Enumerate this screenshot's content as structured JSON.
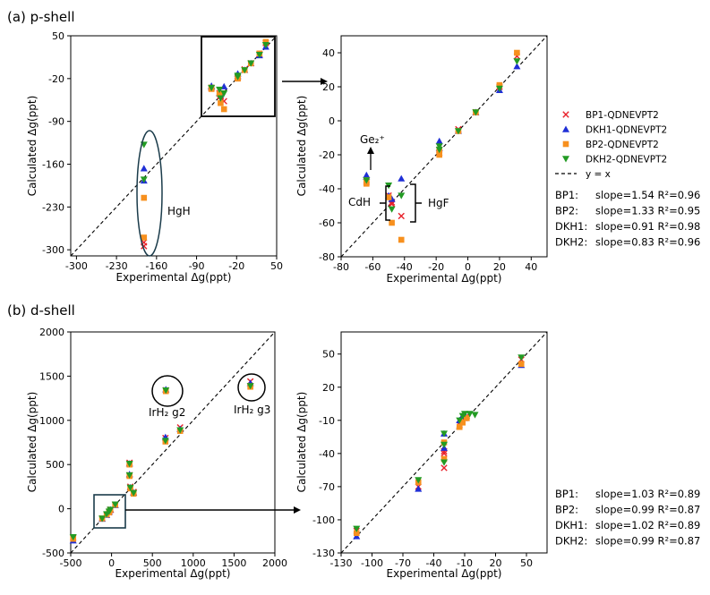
{
  "figure": {
    "panel_a_title": "(a) p-shell",
    "panel_b_title": "(b) d-shell"
  },
  "series_styles": [
    {
      "name": "BP1-QDNEVPT2",
      "color": "#e8202a",
      "marker": "x"
    },
    {
      "name": "DKH1-QDNEVPT2",
      "color": "#1f2fd6",
      "marker": "triangle-up"
    },
    {
      "name": "BP2-QDNEVPT2",
      "color": "#f7901e",
      "marker": "square"
    },
    {
      "name": "DKH2-QDNEVPT2",
      "color": "#239b24",
      "marker": "triangle-down"
    },
    {
      "name": "y = x",
      "color": "#000000",
      "marker": "dashed-line"
    }
  ],
  "legend": {
    "items": [
      "BP1-QDNEVPT2",
      "DKH1-QDNEVPT2",
      "BP2-QDNEVPT2",
      "DKH2-QDNEVPT2",
      "y = x"
    ]
  },
  "fits_p": [
    {
      "label": "BP1:",
      "text": "slope=1.54  R²=0.96"
    },
    {
      "label": "BP2:",
      "text": "slope=1.33  R²=0.95"
    },
    {
      "label": "DKH1:",
      "text": "slope=0.91  R²=0.98"
    },
    {
      "label": "DKH2:",
      "text": "slope=0.83  R²=0.96"
    }
  ],
  "fits_d": [
    {
      "label": "BP1:",
      "text": "slope=1.03  R²=0.89"
    },
    {
      "label": "BP2:",
      "text": "slope=0.99  R²=0.87"
    },
    {
      "label": "DKH1:",
      "text": "slope=1.02  R²=0.89"
    },
    {
      "label": "DKH2:",
      "text": "slope=0.99  R²=0.87"
    }
  ],
  "annotations": {
    "hgh": "HgH",
    "ge2": "Ge₂⁺",
    "cdh": "CdH",
    "hgf": "HgF",
    "irh2g2": "IrH₂ g2",
    "irh2g3": "IrH₂ g3"
  },
  "chart_data": [
    {
      "id": "a-left",
      "type": "scatter",
      "title": "(a) p-shell",
      "xlabel": "Experimental Δg(ppt)",
      "ylabel": "Calculated Δg(ppt)",
      "xlim": [
        -310,
        50
      ],
      "ylim": [
        -310,
        50
      ],
      "xticks": [
        -300,
        -230,
        -160,
        -90,
        -20,
        50
      ],
      "yticks": [
        -300,
        -230,
        -160,
        -90,
        -20,
        50
      ],
      "diagonal": true,
      "series": [
        {
          "name": "BP1-QDNEVPT2",
          "points": [
            [
              -182,
              -288
            ],
            [
              -182,
              -294
            ],
            [
              -64,
              -35
            ],
            [
              -64,
              -36
            ],
            [
              -50,
              -44
            ],
            [
              -48,
              -49
            ],
            [
              -48,
              -48
            ],
            [
              -42,
              -57
            ],
            [
              -18,
              -17
            ],
            [
              -18,
              -19
            ],
            [
              -6,
              -5
            ],
            [
              5,
              5
            ],
            [
              20,
              20
            ],
            [
              31,
              38
            ]
          ]
        },
        {
          "name": "DKH1-QDNEVPT2",
          "points": [
            [
              -182,
              -167
            ],
            [
              -182,
              -187
            ],
            [
              -64,
              -32
            ],
            [
              -64,
              -33
            ],
            [
              -50,
              -44
            ],
            [
              -48,
              -46
            ],
            [
              -42,
              -33
            ],
            [
              -18,
              -12
            ],
            [
              -18,
              -16
            ],
            [
              -6,
              -6
            ],
            [
              5,
              5
            ],
            [
              20,
              18
            ],
            [
              31,
              32
            ]
          ]
        },
        {
          "name": "BP2-QDNEVPT2",
          "points": [
            [
              -182,
              -215
            ],
            [
              -182,
              -280
            ],
            [
              -64,
              -35
            ],
            [
              -64,
              -37
            ],
            [
              -50,
              -45
            ],
            [
              -48,
              -60
            ],
            [
              -42,
              -70
            ],
            [
              -18,
              -18
            ],
            [
              -18,
              -20
            ],
            [
              -6,
              -6
            ],
            [
              5,
              5
            ],
            [
              20,
              21
            ],
            [
              31,
              40
            ]
          ]
        },
        {
          "name": "DKH2-QDNEVPT2",
          "points": [
            [
              -182,
              -128
            ],
            [
              -182,
              -185
            ],
            [
              -64,
              -35
            ],
            [
              -50,
              -38
            ],
            [
              -48,
              -52
            ],
            [
              -42,
              -44
            ],
            [
              -18,
              -15
            ],
            [
              -18,
              -17
            ],
            [
              -6,
              -6
            ],
            [
              5,
              5
            ],
            [
              20,
              19
            ],
            [
              31,
              35
            ]
          ]
        }
      ]
    },
    {
      "id": "a-right",
      "type": "scatter",
      "xlabel": "Experimental Δg(ppt)",
      "ylabel": "Calculated Δg(ppt)",
      "xlim": [
        -80,
        50
      ],
      "ylim": [
        -80,
        50
      ],
      "xticks": [
        -80,
        -60,
        -40,
        -20,
        0,
        20,
        40
      ],
      "yticks": [
        -80,
        -60,
        -40,
        -20,
        0,
        20,
        40
      ],
      "diagonal": true,
      "series": [
        {
          "name": "BP1-QDNEVPT2",
          "points": [
            [
              -64,
              -35
            ],
            [
              -64,
              -36
            ],
            [
              -50,
              -44
            ],
            [
              -48,
              -49
            ],
            [
              -48,
              -48
            ],
            [
              -42,
              -56
            ],
            [
              -18,
              -17
            ],
            [
              -18,
              -19
            ],
            [
              -6,
              -5
            ],
            [
              5,
              5
            ],
            [
              20,
              20
            ],
            [
              31,
              38
            ]
          ]
        },
        {
          "name": "DKH1-QDNEVPT2",
          "points": [
            [
              -64,
              -32
            ],
            [
              -64,
              -33
            ],
            [
              -50,
              -44
            ],
            [
              -48,
              -46
            ],
            [
              -42,
              -34
            ],
            [
              -18,
              -12
            ],
            [
              -18,
              -16
            ],
            [
              -6,
              -6
            ],
            [
              5,
              5
            ],
            [
              20,
              18
            ],
            [
              31,
              32
            ]
          ]
        },
        {
          "name": "BP2-QDNEVPT2",
          "points": [
            [
              -64,
              -35
            ],
            [
              -64,
              -37
            ],
            [
              -50,
              -45
            ],
            [
              -48,
              -60
            ],
            [
              -42,
              -70
            ],
            [
              -18,
              -18
            ],
            [
              -18,
              -20
            ],
            [
              -6,
              -6
            ],
            [
              5,
              5
            ],
            [
              20,
              21
            ],
            [
              31,
              40
            ]
          ]
        },
        {
          "name": "DKH2-QDNEVPT2",
          "points": [
            [
              -64,
              -35
            ],
            [
              -50,
              -38
            ],
            [
              -48,
              -52
            ],
            [
              -42,
              -44
            ],
            [
              -18,
              -15
            ],
            [
              -18,
              -17
            ],
            [
              -6,
              -6
            ],
            [
              5,
              5
            ],
            [
              20,
              19
            ],
            [
              31,
              35
            ]
          ]
        }
      ]
    },
    {
      "id": "b-left",
      "type": "scatter",
      "title": "(b) d-shell",
      "xlabel": "Experimental Δg(ppt)",
      "ylabel": "Calculated Δg(ppt)",
      "xlim": [
        -500,
        2000
      ],
      "ylim": [
        -500,
        2000
      ],
      "xticks": [
        -500,
        0,
        500,
        1000,
        1500,
        2000
      ],
      "yticks": [
        -500,
        0,
        500,
        1000,
        1500,
        2000
      ],
      "diagonal": true,
      "series": [
        {
          "name": "BP1-QDNEVPT2",
          "points": [
            [
              -470,
              -330
            ],
            [
              -115,
              -110
            ],
            [
              -60,
              -70
            ],
            [
              -30,
              -40
            ],
            [
              -15,
              -15
            ],
            [
              -10,
              -10
            ],
            [
              45,
              45
            ],
            [
              220,
              520
            ],
            [
              220,
              380
            ],
            [
              230,
              250
            ],
            [
              270,
              190
            ],
            [
              660,
              800
            ],
            [
              840,
              920
            ],
            [
              1700,
              1440
            ],
            [
              665,
              1340
            ]
          ]
        },
        {
          "name": "DKH1-QDNEVPT2",
          "points": [
            [
              -470,
              -360
            ],
            [
              -115,
              -115
            ],
            [
              -60,
              -70
            ],
            [
              -30,
              -35
            ],
            [
              -15,
              -10
            ],
            [
              45,
              40
            ],
            [
              220,
              510
            ],
            [
              220,
              390
            ],
            [
              230,
              240
            ],
            [
              270,
              180
            ],
            [
              660,
              810
            ],
            [
              840,
              900
            ],
            [
              1700,
              1420
            ],
            [
              665,
              1350
            ]
          ]
        },
        {
          "name": "BP2-QDNEVPT2",
          "points": [
            [
              -470,
              -340
            ],
            [
              -115,
              -110
            ],
            [
              -60,
              -65
            ],
            [
              -30,
              -40
            ],
            [
              -15,
              -12
            ],
            [
              45,
              45
            ],
            [
              220,
              500
            ],
            [
              220,
              370
            ],
            [
              230,
              230
            ],
            [
              270,
              170
            ],
            [
              660,
              760
            ],
            [
              840,
              880
            ],
            [
              1700,
              1380
            ],
            [
              665,
              1330
            ]
          ]
        },
        {
          "name": "DKH2-QDNEVPT2",
          "points": [
            [
              -470,
              -320
            ],
            [
              -115,
              -110
            ],
            [
              -60,
              -60
            ],
            [
              -30,
              -30
            ],
            [
              -15,
              -10
            ],
            [
              45,
              50
            ],
            [
              220,
              510
            ],
            [
              220,
              380
            ],
            [
              230,
              240
            ],
            [
              270,
              180
            ],
            [
              660,
              770
            ],
            [
              840,
              890
            ],
            [
              1700,
              1390
            ],
            [
              665,
              1340
            ]
          ]
        }
      ]
    },
    {
      "id": "b-right",
      "type": "scatter",
      "xlabel": "Experimental Δg(ppt)",
      "ylabel": "Calculated Δg(ppt)",
      "xlim": [
        -130,
        70
      ],
      "ylim": [
        -130,
        70
      ],
      "xticks": [
        -130,
        -100,
        -70,
        -40,
        -10,
        20,
        50
      ],
      "yticks": [
        -130,
        -100,
        -70,
        -40,
        -10,
        20,
        50
      ],
      "diagonal": true,
      "series": [
        {
          "name": "BP1-QDNEVPT2",
          "points": [
            [
              -115,
              -110
            ],
            [
              -55,
              -70
            ],
            [
              -30,
              -53
            ],
            [
              -30,
              -40
            ],
            [
              -30,
              -38
            ],
            [
              -15,
              -14
            ],
            [
              -10,
              -8
            ],
            [
              -8,
              -6
            ],
            [
              45,
              45
            ]
          ]
        },
        {
          "name": "DKH1-QDNEVPT2",
          "points": [
            [
              -115,
              -115
            ],
            [
              -55,
              -72
            ],
            [
              -30,
              -35
            ],
            [
              -30,
              -22
            ],
            [
              -15,
              -10
            ],
            [
              -12,
              -6
            ],
            [
              -10,
              -5
            ],
            [
              45,
              40
            ]
          ]
        },
        {
          "name": "BP2-QDNEVPT2",
          "points": [
            [
              -115,
              -112
            ],
            [
              -55,
              -66
            ],
            [
              -30,
              -45
            ],
            [
              -30,
              -30
            ],
            [
              -15,
              -16
            ],
            [
              -12,
              -12
            ],
            [
              -8,
              -8
            ],
            [
              45,
              41
            ]
          ]
        },
        {
          "name": "DKH2-QDNEVPT2",
          "points": [
            [
              -115,
              -108
            ],
            [
              -55,
              -64
            ],
            [
              -30,
              -48
            ],
            [
              -30,
              -32
            ],
            [
              -30,
              -22
            ],
            [
              -15,
              -10
            ],
            [
              -12,
              -6
            ],
            [
              -10,
              -4
            ],
            [
              -5,
              -4
            ],
            [
              0,
              -5
            ],
            [
              45,
              47
            ]
          ]
        }
      ]
    }
  ]
}
